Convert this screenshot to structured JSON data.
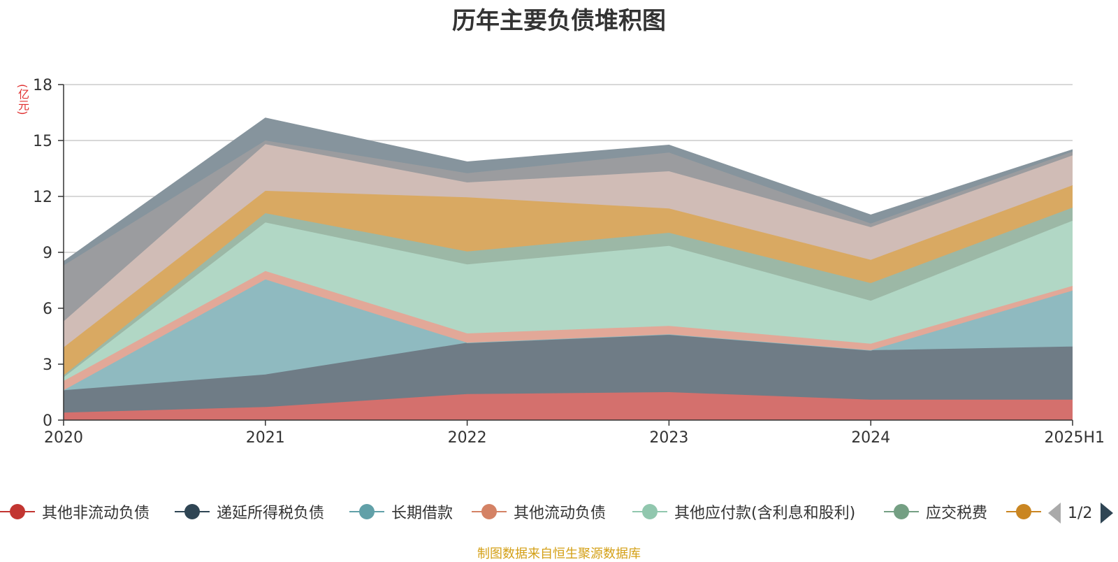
{
  "title": "历年主要负债堆积图",
  "unit_label": "(亿元)",
  "source_note": "制图数据来自恒生聚源数据库",
  "pager": {
    "text": "1/2"
  },
  "chart_data": {
    "type": "area",
    "stacked": true,
    "categories": [
      "2020",
      "2021",
      "2022",
      "2023",
      "2024",
      "2025H1"
    ],
    "ylim": [
      0,
      18
    ],
    "yticks": [
      0,
      3,
      6,
      9,
      12,
      15,
      18
    ],
    "grid": true,
    "legend_position": "bottom",
    "series": [
      {
        "name": "其他非流动负债",
        "color": "#c23531",
        "area_color": "#d4706d",
        "values": [
          0.4,
          0.7,
          1.4,
          1.5,
          1.1,
          1.1
        ]
      },
      {
        "name": "递延所得税负债",
        "color": "#2f4554",
        "area_color": "#6f7c86",
        "values": [
          1.2,
          1.75,
          2.75,
          3.1,
          2.65,
          2.85
        ]
      },
      {
        "name": "长期借款",
        "color": "#61a0a8",
        "area_color": "#8fbac0",
        "values": [
          0.0,
          5.1,
          0.0,
          0.0,
          0.0,
          3.0
        ]
      },
      {
        "name": "其他流动负债",
        "color": "#d48265",
        "area_color": "#e2a898",
        "values": [
          0.5,
          0.45,
          0.5,
          0.45,
          0.35,
          0.25
        ]
      },
      {
        "name": "其他应付款(含利息和股利)",
        "color": "#91c7ae",
        "area_color": "#b1d7c5",
        "values": [
          0.2,
          2.6,
          3.7,
          4.3,
          2.3,
          3.5
        ]
      },
      {
        "name": "应交税费",
        "color": "#749f83",
        "area_color": "#9cb8a6",
        "values": [
          0.1,
          0.5,
          0.7,
          0.7,
          0.95,
          0.7
        ]
      },
      {
        "name": "",
        "color": "#ca8622",
        "area_color": "#d9a962",
        "values": [
          1.5,
          1.2,
          2.9,
          1.3,
          1.25,
          1.2
        ]
      },
      {
        "name": "",
        "color": "#bda29a",
        "area_color": "#d0bcb6",
        "values": [
          1.4,
          2.5,
          0.8,
          2.0,
          1.75,
          1.6
        ]
      },
      {
        "name": "",
        "color": "#6e7074",
        "area_color": "#9b9c9f",
        "values": [
          3.0,
          0.2,
          0.5,
          1.0,
          0.2,
          0.2
        ]
      },
      {
        "name": "",
        "color": "#546570",
        "area_color": "#86949d",
        "values": [
          0.2,
          1.2,
          0.6,
          0.4,
          0.45,
          0.1
        ]
      }
    ],
    "visible_legend_entries": 7
  }
}
